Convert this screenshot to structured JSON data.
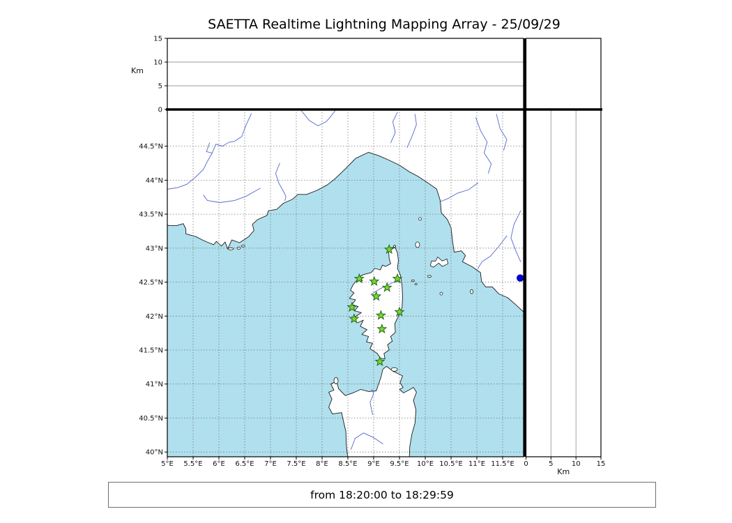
{
  "title": "SAETTA Realtime Lightning Mapping Array - 25/09/29",
  "footer": {
    "time_range": "from 18:20:00 to 18:29:59"
  },
  "colors": {
    "sea": "#b0e0ee",
    "land": "#ffffff",
    "coastline": "#1a1a1a",
    "river": "#5566cc",
    "grid_dash": "#767676",
    "panel_grid": "#9a9a9a",
    "frame": "#000000",
    "station_fill": "#78d82c",
    "station_edge": "#23661a",
    "source_dot": "#0000cc"
  },
  "map_panel": {
    "lon_axis": {
      "labels": [
        "5°E",
        "5.5°E",
        "6°E",
        "6.5°E",
        "7°E",
        "7.5°E",
        "8°E",
        "8.5°E",
        "9°E",
        "9.5°E",
        "10°E",
        "10.5°E",
        "11°E",
        "11.5°E"
      ],
      "values": [
        5,
        5.5,
        6,
        6.5,
        7,
        7.5,
        8,
        8.5,
        9,
        9.5,
        10,
        10.5,
        11,
        11.5
      ]
    },
    "lat_axis": {
      "labels": [
        "40°N",
        "40.5°N",
        "41°N",
        "41.5°N",
        "42°N",
        "42.5°N",
        "43°N",
        "43.5°N",
        "44°N",
        "44.5°N"
      ],
      "values": [
        40,
        40.5,
        41,
        41.5,
        42,
        42.5,
        43,
        43.5,
        44,
        44.5
      ]
    },
    "lon_range": [
      5.0,
      11.9
    ],
    "lat_range": [
      39.93,
      45.04
    ]
  },
  "altitude_panels": {
    "unit_label": "Km",
    "tick_labels": [
      "0",
      "5",
      "10",
      "15"
    ],
    "tick_values": [
      0,
      5,
      10,
      15
    ],
    "gridline_values": [
      5,
      10
    ],
    "range_km": [
      0,
      15
    ]
  },
  "stations": [
    {
      "lon": 9.3,
      "lat": 42.98
    },
    {
      "lon": 8.72,
      "lat": 42.55
    },
    {
      "lon": 9.01,
      "lat": 42.51
    },
    {
      "lon": 9.46,
      "lat": 42.55
    },
    {
      "lon": 9.26,
      "lat": 42.42
    },
    {
      "lon": 9.05,
      "lat": 42.29
    },
    {
      "lon": 8.58,
      "lat": 42.13
    },
    {
      "lon": 9.5,
      "lat": 42.06
    },
    {
      "lon": 8.62,
      "lat": 41.96
    },
    {
      "lon": 9.14,
      "lat": 42.01
    },
    {
      "lon": 9.16,
      "lat": 41.81
    },
    {
      "lon": 9.12,
      "lat": 41.33
    }
  ],
  "sources": [
    {
      "lon": 11.84,
      "lat": 42.56
    }
  ]
}
